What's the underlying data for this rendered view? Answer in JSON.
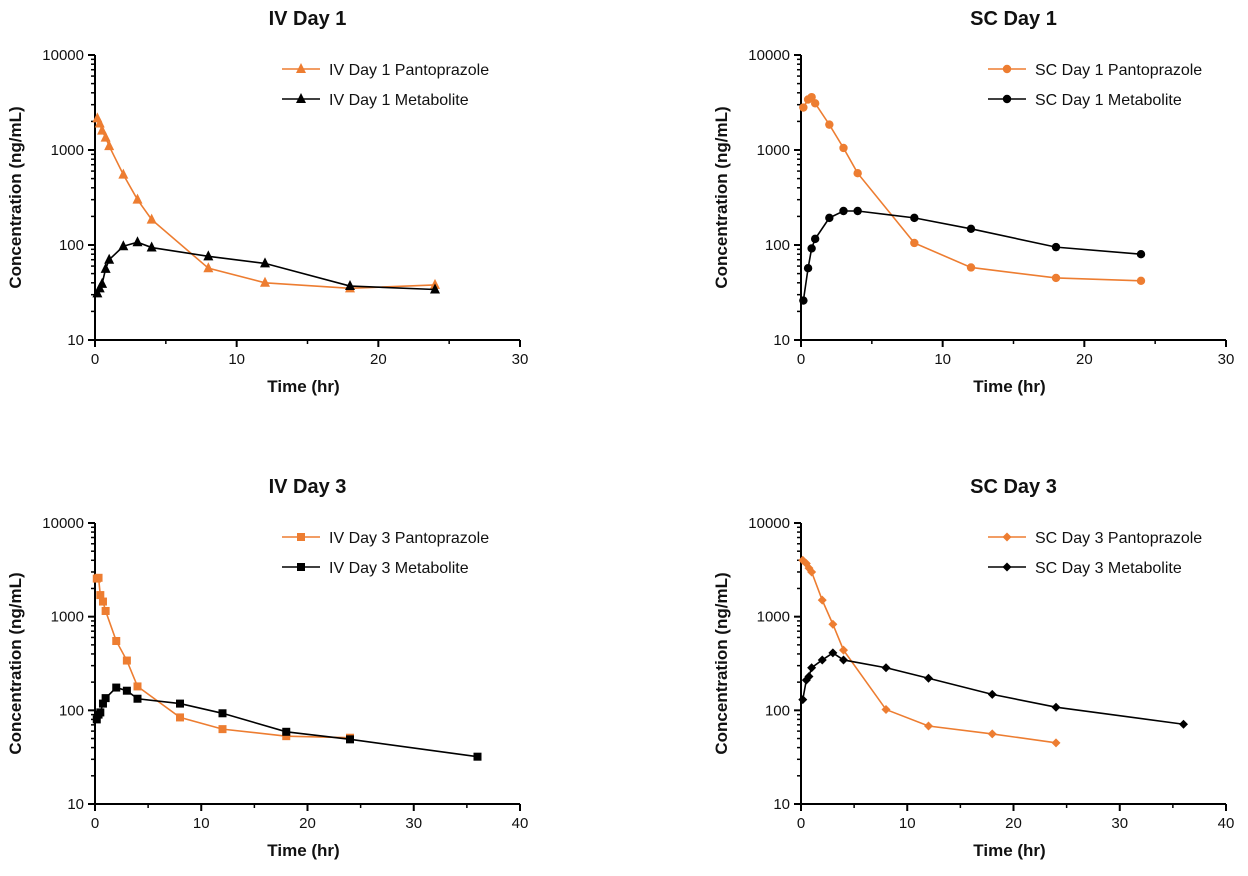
{
  "chart_data": [
    {
      "type": "line",
      "title": "IV Day 1",
      "xlabel": "Time (hr)",
      "ylabel": "Concentration (ng/mL)",
      "yscale": "log",
      "xlim": [
        0,
        30
      ],
      "ylim": [
        10,
        10000
      ],
      "xticks": [
        "0",
        "10",
        "20",
        "30"
      ],
      "yticks": [
        "10",
        "100",
        "1000",
        "10000"
      ],
      "legend_position": "top-right",
      "series": [
        {
          "name": "IV Day  1 Pantoprazole",
          "color": "#ED7D31",
          "marker": "triangle",
          "x": [
            0.167,
            0.333,
            0.5,
            0.75,
            1,
            2,
            3,
            4,
            8,
            12,
            18,
            24
          ],
          "y": [
            2150,
            1900,
            1600,
            1350,
            1100,
            550,
            300,
            185,
            57,
            40,
            35,
            38
          ]
        },
        {
          "name": "IV Day 1 Metabolite",
          "color": "#000000",
          "marker": "triangle",
          "x": [
            0.167,
            0.333,
            0.5,
            0.75,
            1,
            2,
            3,
            4,
            8,
            12,
            18,
            24
          ],
          "y": [
            31,
            35,
            39,
            56,
            70,
            97,
            107,
            94,
            76,
            64,
            37,
            34
          ]
        }
      ]
    },
    {
      "type": "line",
      "title": "SC Day 1",
      "xlabel": "Time (hr)",
      "ylabel": "Concentration (ng/mL)",
      "yscale": "log",
      "xlim": [
        0,
        30
      ],
      "ylim": [
        10,
        10000
      ],
      "xticks": [
        "0",
        "10",
        "20",
        "30"
      ],
      "yticks": [
        "10",
        "100",
        "1000",
        "10000"
      ],
      "legend_position": "top-right",
      "series": [
        {
          "name": "SC Day 1 Pantoprazole",
          "color": "#ED7D31",
          "marker": "circle",
          "x": [
            0.167,
            0.5,
            0.75,
            1,
            2,
            3,
            4,
            8,
            12,
            18,
            24
          ],
          "y": [
            2800,
            3400,
            3600,
            3100,
            1850,
            1050,
            570,
            105,
            58,
            45,
            42
          ]
        },
        {
          "name": "SC Day 1 Metabolite",
          "color": "#000000",
          "marker": "circle",
          "x": [
            0.167,
            0.5,
            0.75,
            1,
            2,
            3,
            4,
            8,
            12,
            18,
            24
          ],
          "y": [
            26,
            57,
            92,
            116,
            193,
            228,
            228,
            193,
            148,
            95,
            80
          ]
        }
      ]
    },
    {
      "type": "line",
      "title": "IV Day 3",
      "xlabel": "Time (hr)",
      "ylabel": "Concentration (ng/mL)",
      "yscale": "log",
      "xlim": [
        0,
        40
      ],
      "ylim": [
        10,
        10000
      ],
      "xticks": [
        "0",
        "10",
        "20",
        "30",
        "40"
      ],
      "yticks": [
        "10",
        "100",
        "1000",
        "10000"
      ],
      "legend_position": "top-right",
      "series": [
        {
          "name": "IV Day 3 Pantoprazole",
          "color": "#ED7D31",
          "marker": "square",
          "x": [
            0.167,
            0.333,
            0.5,
            0.75,
            1,
            2,
            3,
            4,
            8,
            12,
            18,
            24
          ],
          "y": [
            2550,
            2600,
            1700,
            1450,
            1150,
            550,
            340,
            180,
            84,
            63,
            53,
            51
          ]
        },
        {
          "name": "IV Day 3 Metabolite",
          "color": "#000000",
          "marker": "square",
          "x": [
            0.167,
            0.333,
            0.5,
            0.75,
            1,
            2,
            3,
            4,
            8,
            12,
            18,
            24,
            36
          ],
          "y": [
            80,
            90,
            95,
            118,
            135,
            175,
            162,
            133,
            118,
            93,
            59,
            49,
            32
          ]
        }
      ]
    },
    {
      "type": "line",
      "title": "SC Day 3",
      "xlabel": "Time (hr)",
      "ylabel": "Concentration (ng/mL)",
      "yscale": "log",
      "xlim": [
        0,
        40
      ],
      "ylim": [
        10,
        10000
      ],
      "xticks": [
        "0",
        "10",
        "20",
        "30",
        "40"
      ],
      "yticks": [
        "10",
        "100",
        "1000",
        "10000"
      ],
      "legend_position": "top-right",
      "series": [
        {
          "name": "SC Day 3 Pantoprazole",
          "color": "#ED7D31",
          "marker": "diamond",
          "x": [
            0.167,
            0.5,
            0.75,
            1,
            2,
            3,
            4,
            8,
            12,
            18,
            24
          ],
          "y": [
            4000,
            3700,
            3300,
            3000,
            1500,
            830,
            440,
            102,
            68,
            56,
            45
          ]
        },
        {
          "name": "SC Day 3 Metabolite",
          "color": "#000000",
          "marker": "diamond",
          "x": [
            0.167,
            0.5,
            0.75,
            1,
            2,
            3,
            4,
            8,
            12,
            18,
            24,
            36
          ],
          "y": [
            130,
            210,
            230,
            285,
            345,
            410,
            345,
            285,
            220,
            148,
            108,
            71
          ]
        }
      ]
    }
  ]
}
